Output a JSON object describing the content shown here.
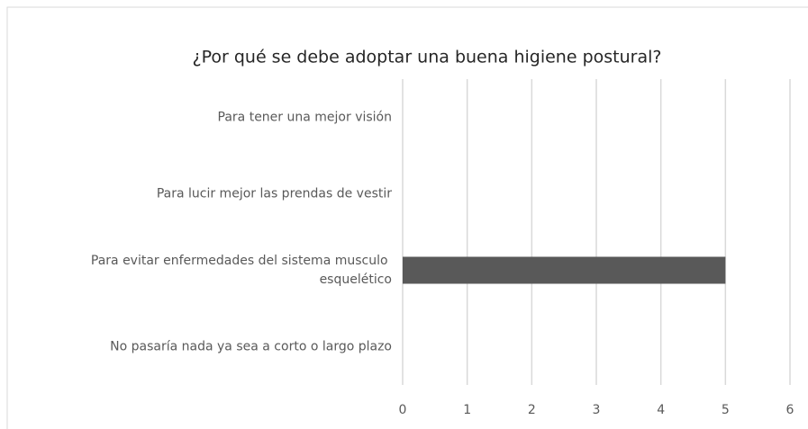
{
  "chart_data": {
    "type": "bar",
    "orientation": "horizontal",
    "title": "¿Por qué se debe adoptar una buena higiene postural?",
    "categories": [
      "Para tener una mejor visión",
      "Para lucir mejor las prendas de vestir",
      "Para evitar enfermedades del sistema musculo esquelético",
      "No pasaría nada ya sea a corto o largo plazo"
    ],
    "values": [
      0,
      0,
      5,
      0
    ],
    "color": "#595959",
    "xlim": [
      0,
      6
    ],
    "xticks": [
      0,
      1,
      2,
      3,
      4,
      5,
      6
    ],
    "grid": true
  }
}
